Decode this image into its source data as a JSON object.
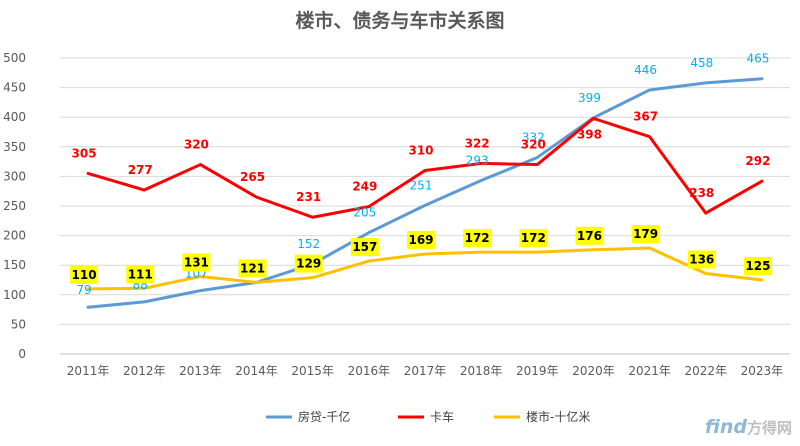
{
  "chart_data": {
    "type": "line",
    "title": "楼市、债务与车市关系图",
    "categories": [
      "2011年",
      "2012年",
      "2013年",
      "2014年",
      "2015年",
      "2016年",
      "2017年",
      "2018年",
      "2019年",
      "2020年",
      "2021年",
      "2022年",
      "2023年"
    ],
    "ylim": [
      0,
      500
    ],
    "yticks": [
      0,
      50,
      100,
      150,
      200,
      250,
      300,
      350,
      400,
      450,
      500
    ],
    "grid": true,
    "legend_position": "bottom",
    "series": [
      {
        "name": "房贷-千亿",
        "color": "#5b9bd5",
        "label_color": "#00b0f0",
        "values": [
          79,
          88,
          107,
          121,
          152,
          205,
          251,
          293,
          332,
          399,
          446,
          458,
          465
        ]
      },
      {
        "name": "卡车",
        "color": "#ff0000",
        "label_color": "#ff0000",
        "values": [
          305,
          277,
          320,
          265,
          231,
          249,
          310,
          322,
          320,
          398,
          367,
          238,
          292
        ]
      },
      {
        "name": "楼市-十亿米",
        "color": "#ffc000",
        "label_color": "#000000",
        "label_bg": "#ffff00",
        "values": [
          110,
          111,
          131,
          121,
          129,
          157,
          169,
          172,
          172,
          176,
          179,
          136,
          125
        ]
      }
    ]
  },
  "watermark": {
    "latin": "find",
    "cn": "方得网"
  }
}
